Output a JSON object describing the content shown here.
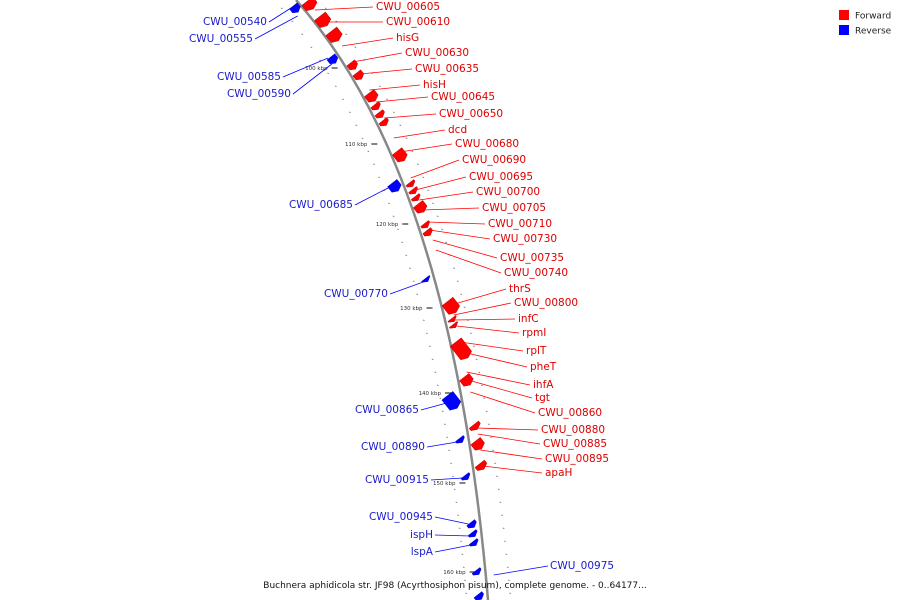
{
  "caption": "Buchnera aphidicola str. JF98 (Acyrthosiphon pisum), complete genome. - 0..64177...",
  "legend": [
    {
      "label": "Forward",
      "color": "#ff0000"
    },
    {
      "label": "Reverse",
      "color": "#0000ff"
    }
  ],
  "colors": {
    "forward": "#ff0000",
    "reverse": "#0000ff",
    "forward_text": "#dd0000",
    "reverse_text": "#1a1acc",
    "backbone": "#888888"
  },
  "ticks": [
    "100 kbp",
    "110 kbp",
    "120 kbp",
    "130 kbp",
    "140 kbp",
    "150 kbp",
    "160 kbp"
  ],
  "forward_genes": [
    "CWU_00605",
    "CWU_00610",
    "hisG",
    "CWU_00630",
    "CWU_00635",
    "hisH",
    "CWU_00645",
    "CWU_00650",
    "dcd",
    "CWU_00680",
    "CWU_00690",
    "CWU_00695",
    "CWU_00700",
    "CWU_00705",
    "CWU_00710",
    "CWU_00730",
    "CWU_00735",
    "CWU_00740",
    "thrS",
    "CWU_00800",
    "infC",
    "rpmI",
    "rplT",
    "pheT",
    "ihfA",
    "tgt",
    "CWU_00860",
    "CWU_00880",
    "CWU_00885",
    "CWU_00895",
    "apaH"
  ],
  "reverse_genes": [
    "CWU_00540",
    "CWU_00555",
    "CWU_00585",
    "CWU_00590",
    "CWU_00685",
    "CWU_00770",
    "CWU_00865",
    "CWU_00890",
    "CWU_00915",
    "CWU_00945",
    "ispH",
    "lspA",
    "CWU_00975"
  ]
}
